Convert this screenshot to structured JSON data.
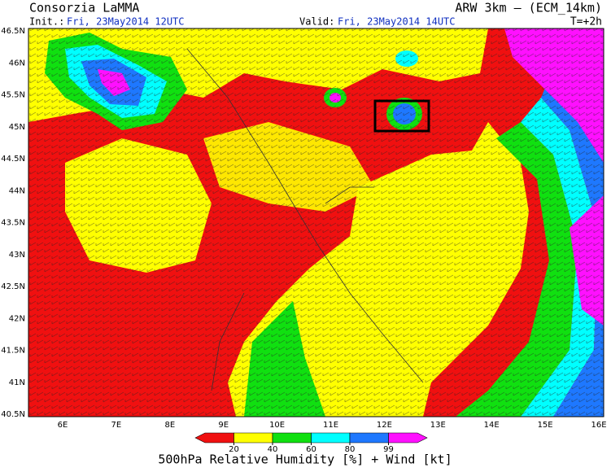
{
  "header": {
    "title": "Consorzia LaMMA",
    "init_label": "Init.:",
    "init_time": "Fri, 23May2014 12UTC",
    "valid_label": "Valid:",
    "valid_time": "Fri, 23May2014 14UTC",
    "model": "ARW 3km – (ECM_14km)",
    "lead": "T=+2h"
  },
  "map": {
    "lat_labels": [
      "46.5N",
      "46N",
      "45.5N",
      "45N",
      "44.5N",
      "44N",
      "43.5N",
      "43N",
      "42.5N",
      "42N",
      "41.5N",
      "41N",
      "40.5N"
    ],
    "lon_labels": [
      "6E",
      "7E",
      "8E",
      "9E",
      "10E",
      "11E",
      "12E",
      "13E",
      "14E",
      "15E",
      "16E"
    ]
  },
  "legend": {
    "ticks": [
      20,
      40,
      60,
      80,
      99
    ],
    "colors": [
      "#f01010",
      "#ffff00",
      "#10e010",
      "#00ffff",
      "#1e78ff",
      "#ff10ff"
    ],
    "caption": "500hPa Relative Humidity [%] + Wind [kt]"
  }
}
